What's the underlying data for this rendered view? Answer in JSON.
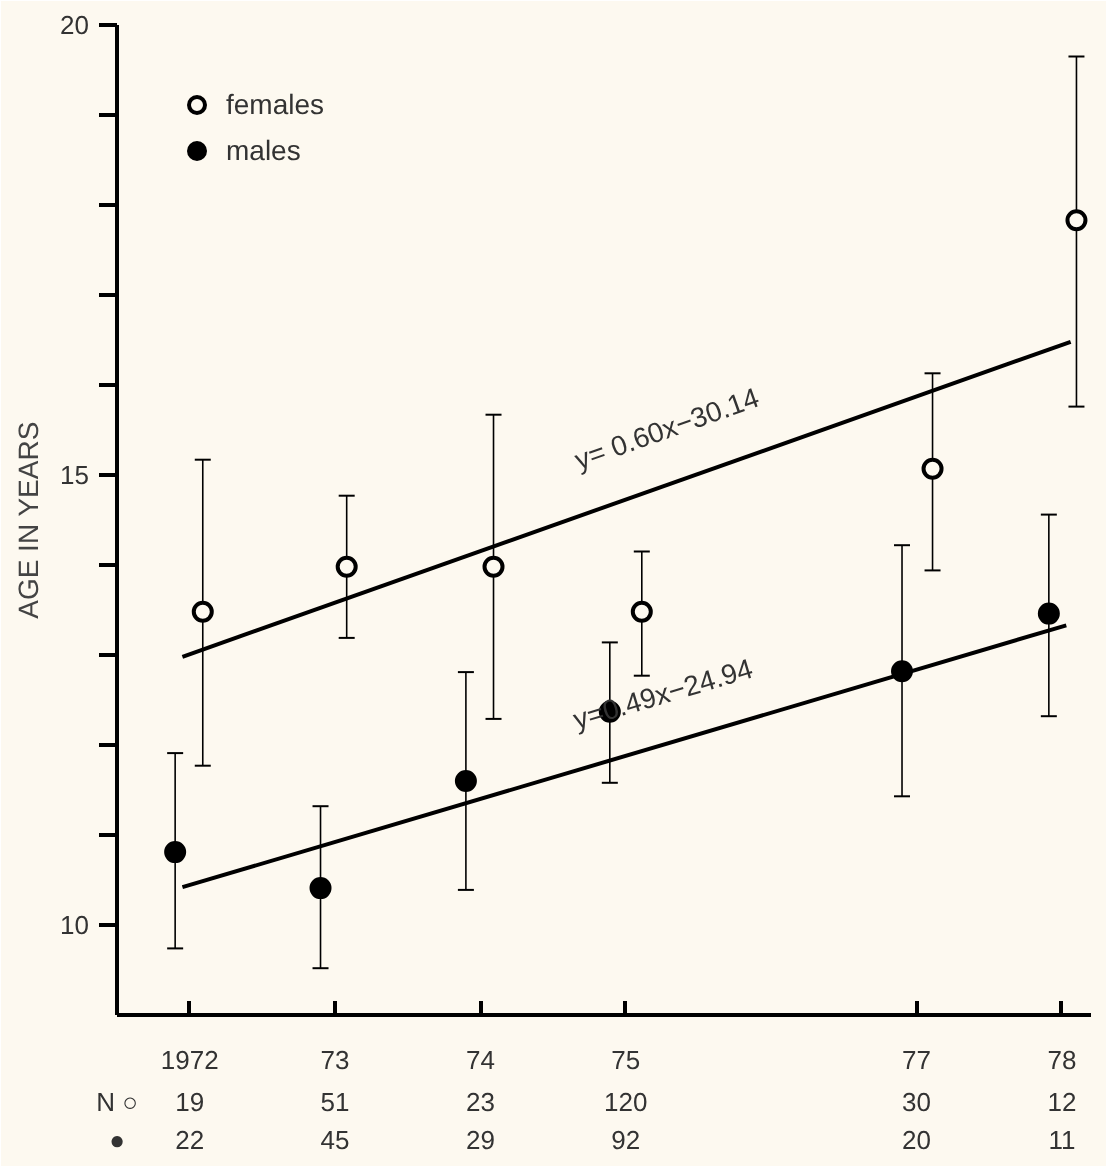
{
  "chart_data": {
    "type": "scatter",
    "ylabel": "AGE IN YEARS",
    "xlim": [
      1971.5,
      1978.2
    ],
    "ylim": [
      9,
      20
    ],
    "xticks": [
      1972,
      {
        "value": 1973,
        "label": "73"
      },
      {
        "value": 1974,
        "label": "74"
      },
      {
        "value": 1975,
        "label": "75"
      },
      {
        "value": 1977,
        "label": "77"
      },
      {
        "value": 1978,
        "label": "78"
      }
    ],
    "yticks": [
      10,
      {
        "value": 11,
        "label": null
      },
      {
        "value": 12,
        "label": null
      },
      {
        "value": 13,
        "label": null
      },
      {
        "value": 14,
        "label": null
      },
      15,
      {
        "value": 16,
        "label": null
      },
      {
        "value": 17,
        "label": null
      },
      {
        "value": 18,
        "label": null
      },
      {
        "value": 19,
        "label": null
      },
      20
    ],
    "series": [
      {
        "name": "females",
        "marker": "circle_open",
        "color": "#000000",
        "x": [
          1972.09,
          1973.08,
          1974.09,
          1975.11,
          1977.11,
          1978.1
        ],
        "values": [
          13.48,
          13.98,
          13.98,
          13.48,
          15.07,
          17.83
        ],
        "errors": [
          [
            11.77,
            15.17
          ],
          [
            13.19,
            14.77
          ],
          [
            12.29,
            15.67
          ],
          [
            12.77,
            14.15
          ],
          [
            13.94,
            16.13
          ],
          [
            15.76,
            19.65
          ]
        ]
      },
      {
        "name": "males",
        "marker": "circle",
        "color": "#000000",
        "x": [
          1971.9,
          1972.9,
          1973.9,
          1974.89,
          1976.9,
          1977.91
        ],
        "values": [
          10.81,
          10.41,
          11.6,
          12.37,
          12.82,
          13.46
        ],
        "errors": [
          [
            9.74,
            11.91
          ],
          [
            9.52,
            11.32
          ],
          [
            10.39,
            12.81
          ],
          [
            11.58,
            13.14
          ],
          [
            11.43,
            14.22
          ],
          [
            12.32,
            14.56
          ]
        ]
      },
      {
        "name": "y= 0.60x−30.14",
        "type": "line",
        "color": "#000000",
        "x": [
          1971.95,
          1978.06
        ],
        "values": [
          12.98,
          16.48
        ]
      },
      {
        "name": "y=0.49x−24.94",
        "type": "line",
        "color": "#000000",
        "x": [
          1971.95,
          1978.03
        ],
        "values": [
          10.42,
          13.33
        ]
      }
    ],
    "annotations": [
      "N ○",
      "19",
      "51",
      "23",
      "120",
      "30",
      "12",
      "●",
      "22",
      "45",
      "29",
      "92",
      "20",
      "11"
    ],
    "legend": "top left",
    "grid": false
  }
}
